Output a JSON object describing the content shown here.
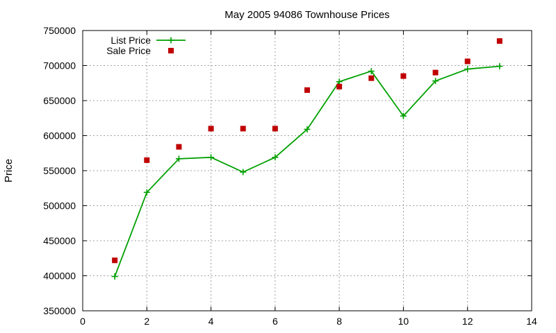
{
  "chart_data": {
    "type": "line",
    "title": "May 2005 94086 Townhouse Prices",
    "xlabel": "",
    "ylabel": "Price",
    "xlim": [
      0,
      14
    ],
    "ylim": [
      350000,
      750000
    ],
    "xticks": [
      0,
      2,
      4,
      6,
      8,
      10,
      12,
      14
    ],
    "yticks": [
      350000,
      400000,
      450000,
      500000,
      550000,
      600000,
      650000,
      700000,
      750000
    ],
    "grid": true,
    "legend_position": "top-left",
    "series": [
      {
        "name": "List Price",
        "style": "linespoints",
        "marker": "plus",
        "color": "#00a000",
        "x": [
          1,
          2,
          3,
          4,
          5,
          6,
          7,
          8,
          9,
          10,
          11,
          12,
          13
        ],
        "y": [
          399000,
          519000,
          567000,
          569000,
          548000,
          569000,
          609000,
          677000,
          692000,
          628000,
          678000,
          695000,
          699000
        ]
      },
      {
        "name": "Sale Price",
        "style": "points",
        "marker": "square",
        "color": "#c00000",
        "x": [
          1,
          2,
          3,
          4,
          5,
          6,
          7,
          8,
          9,
          10,
          11,
          12,
          13
        ],
        "y": [
          422000,
          565000,
          584000,
          610000,
          610000,
          610000,
          665000,
          670000,
          682000,
          685000,
          690000,
          706000,
          735000
        ]
      }
    ]
  }
}
